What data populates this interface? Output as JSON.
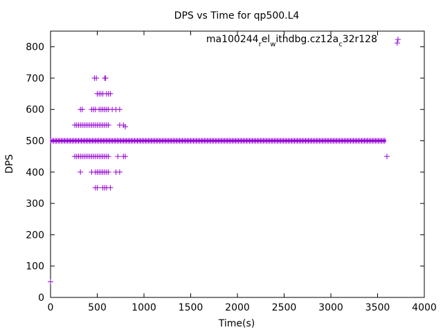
{
  "chart_data": {
    "type": "scatter",
    "title": "DPS vs Time for qp500.L4",
    "xlabel": "Time(s)",
    "ylabel": "DPS",
    "xlim": [
      0,
      4000
    ],
    "ylim": [
      0,
      850
    ],
    "xticks": [
      0,
      500,
      1000,
      1500,
      2000,
      2500,
      3000,
      3500,
      4000
    ],
    "yticks": [
      0,
      100,
      200,
      300,
      400,
      500,
      600,
      700,
      800
    ],
    "grid": false,
    "legend_position": "top-right",
    "marker": "plus",
    "series": [
      {
        "name": "ma100244_rel_withdbg.cz12_ac32r128",
        "name_parts": [
          "ma100244",
          "r",
          "el",
          "w",
          "ithdbg.cz12a",
          "c",
          "32r128"
        ],
        "color": "#9400d3",
        "x": [
          0,
          3600,
          3710,
          470,
          490,
          580,
          590,
          500,
          520,
          540,
          560,
          600,
          620,
          640,
          320,
          340,
          440,
          460,
          480,
          520,
          540,
          560,
          580,
          600,
          620,
          660,
          700,
          740,
          260,
          280,
          300,
          320,
          340,
          360,
          380,
          400,
          420,
          440,
          460,
          480,
          500,
          520,
          540,
          560,
          580,
          600,
          620,
          740,
          780,
          800,
          260,
          280,
          300,
          320,
          340,
          360,
          380,
          400,
          420,
          440,
          460,
          480,
          500,
          520,
          540,
          560,
          580,
          600,
          620,
          720,
          780,
          800,
          320,
          440,
          480,
          500,
          520,
          540,
          560,
          580,
          600,
          620,
          700,
          740,
          480,
          500,
          560,
          580,
          600,
          640
        ],
        "y": [
          50,
          450,
          812,
          700,
          700,
          700,
          700,
          650,
          650,
          650,
          650,
          650,
          650,
          650,
          600,
          600,
          600,
          600,
          600,
          600,
          600,
          600,
          600,
          600,
          600,
          600,
          600,
          600,
          550,
          550,
          550,
          550,
          550,
          550,
          550,
          550,
          550,
          550,
          550,
          550,
          550,
          550,
          550,
          550,
          550,
          550,
          550,
          550,
          550,
          545,
          450,
          450,
          450,
          450,
          450,
          450,
          450,
          450,
          450,
          450,
          450,
          450,
          450,
          450,
          450,
          450,
          450,
          450,
          450,
          450,
          450,
          450,
          400,
          400,
          400,
          400,
          400,
          400,
          400,
          400,
          400,
          400,
          400,
          400,
          350,
          350,
          350,
          350,
          350,
          350
        ],
        "dense_band": {
          "y": 500,
          "x_start": 0,
          "x_end": 3590
        }
      }
    ]
  }
}
